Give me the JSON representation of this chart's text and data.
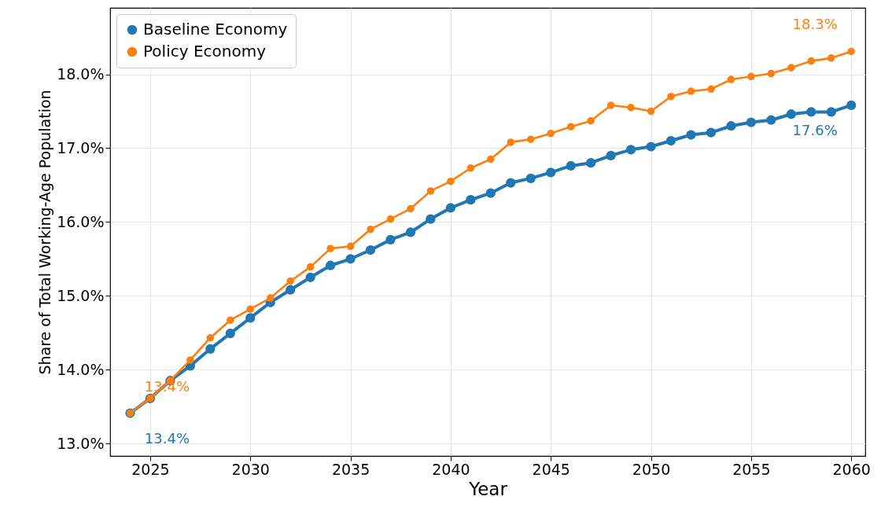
{
  "chart_data": {
    "type": "line",
    "xlabel": "Year",
    "ylabel": "Share of Total Working-Age Population",
    "x": [
      2024,
      2025,
      2026,
      2027,
      2028,
      2029,
      2030,
      2031,
      2032,
      2033,
      2034,
      2035,
      2036,
      2037,
      2038,
      2039,
      2040,
      2041,
      2042,
      2043,
      2044,
      2045,
      2046,
      2047,
      2048,
      2049,
      2050,
      2051,
      2052,
      2053,
      2054,
      2055,
      2056,
      2057,
      2058,
      2059,
      2060
    ],
    "series": [
      {
        "name": "Baseline Economy",
        "color": "#1f77b4",
        "values": [
          13.41,
          13.61,
          13.85,
          14.05,
          14.28,
          14.49,
          14.7,
          14.91,
          15.08,
          15.25,
          15.41,
          15.5,
          15.62,
          15.76,
          15.86,
          16.04,
          16.19,
          16.3,
          16.39,
          16.53,
          16.59,
          16.67,
          16.76,
          16.8,
          16.9,
          16.98,
          17.02,
          17.1,
          17.18,
          17.21,
          17.3,
          17.35,
          17.38,
          17.46,
          17.49,
          17.49,
          17.58
        ],
        "value_labels": [
          "13.4%",
          null,
          null,
          null,
          null,
          null,
          null,
          null,
          null,
          null,
          null,
          null,
          null,
          null,
          null,
          null,
          null,
          null,
          null,
          null,
          null,
          null,
          null,
          null,
          null,
          null,
          null,
          null,
          null,
          null,
          null,
          null,
          null,
          null,
          null,
          null,
          "17.6%"
        ]
      },
      {
        "name": "Policy Economy",
        "color": "#ff7f0e",
        "values": [
          13.41,
          13.61,
          13.85,
          14.13,
          14.43,
          14.67,
          14.82,
          14.97,
          15.2,
          15.39,
          15.64,
          15.67,
          15.9,
          16.04,
          16.18,
          16.42,
          16.55,
          16.73,
          16.85,
          17.08,
          17.12,
          17.2,
          17.29,
          17.37,
          17.58,
          17.55,
          17.5,
          17.7,
          17.77,
          17.8,
          17.93,
          17.97,
          18.01,
          18.09,
          18.18,
          18.22,
          18.31
        ],
        "value_labels": [
          "13.4%",
          null,
          null,
          null,
          null,
          null,
          null,
          null,
          null,
          null,
          null,
          null,
          null,
          null,
          null,
          null,
          null,
          null,
          null,
          null,
          null,
          null,
          null,
          null,
          null,
          null,
          null,
          null,
          null,
          null,
          null,
          null,
          null,
          null,
          null,
          null,
          "18.3%"
        ]
      }
    ],
    "xlim": [
      2023,
      2060.7
    ],
    "ylim": [
      12.83,
      18.9
    ],
    "xticks": [
      2025,
      2030,
      2035,
      2040,
      2045,
      2050,
      2055,
      2060
    ],
    "yticks": [
      {
        "value": 13,
        "label": "13.0%"
      },
      {
        "value": 14,
        "label": "14.0%"
      },
      {
        "value": 15,
        "label": "15.0%"
      },
      {
        "value": 16,
        "label": "16.0%"
      },
      {
        "value": 17,
        "label": "17.0%"
      },
      {
        "value": 18,
        "label": "18.0%"
      }
    ],
    "grid": true,
    "legend": "top left",
    "marker": "circle",
    "line_style": "solid"
  }
}
